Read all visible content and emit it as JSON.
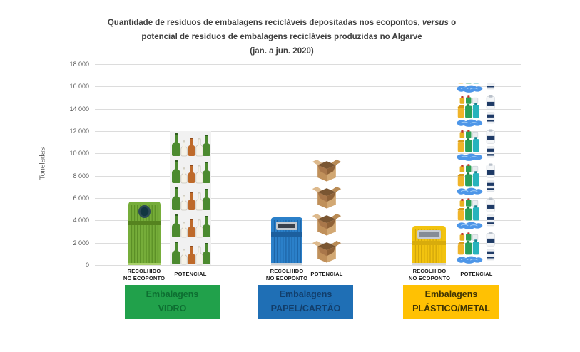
{
  "title": {
    "line1_pre": "Quantidade de resíduos de embalagens recicláveis depositadas nos ecopontos, ",
    "line1_italic": "versus",
    "line1_post": " o",
    "line2": "potencial de resíduos de embalagens recicláveis produzidas no Algarve",
    "line3": "(jan. a jun. 2020)"
  },
  "y_axis": {
    "label": "Toneladas",
    "ticks": [
      "18 000",
      "16 000",
      "14 000",
      "12 000",
      "10 000",
      "8 000",
      "6 000",
      "4 000",
      "2 000",
      "0"
    ],
    "max": 18000,
    "min": 0
  },
  "chart_data": {
    "type": "bar",
    "title": "Quantidade de resíduos de embalagens recicláveis depositadas nos ecopontos, versus o potencial de resíduos de embalagens recicláveis produzidas no Algarve (jan. a jun. 2020)",
    "xlabel": "",
    "ylabel": "Toneladas",
    "ylim": [
      0,
      18000
    ],
    "grid": true,
    "legend_position": "none",
    "unit": "toneladas",
    "categories": [
      "Embalagens VIDRO",
      "Embalagens PAPEL/CARTÃO",
      "Embalagens PLÁSTICO/METAL"
    ],
    "series": [
      {
        "name": "RECOLHIDO NO ECOPONTO",
        "values": [
          5700,
          4300,
          3500
        ]
      },
      {
        "name": "POTENCIAL",
        "values": [
          12000,
          9800,
          16300
        ]
      }
    ]
  },
  "groups": [
    {
      "id": "vidro",
      "recolhido_label_line1": "RECOLHIDO",
      "recolhido_label_line2": "NO ECOPONTO",
      "potencial_label": "POTENCIAL",
      "category_line1": "Embalagens",
      "category_line2": "VIDRO",
      "category_bg": "#21A14B",
      "category_text": "#0D6E31",
      "bin_icon": "glass-recycling-bin-icon",
      "potencial_icon": "glass-bottles-row-icon",
      "potencial_bg": "#F1F1F1",
      "bin_colors": {
        "body": "#76AD3A",
        "stripe": "#5B8F26",
        "band": "#55831F",
        "base": "#A8D06A",
        "hole_outer": "#2C4A56",
        "hole_inner": "#123641",
        "opening": "circle"
      }
    },
    {
      "id": "papel",
      "recolhido_label_line1": "RECOLHIDO",
      "recolhido_label_line2": "NO ECOPONTO",
      "potencial_label": "POTENCIAL",
      "category_line1": "Embalagens",
      "category_line2": "PAPEL/CARTÃO",
      "category_bg": "#1F6FB5",
      "category_text": "#123E6B",
      "bin_icon": "paper-recycling-bin-icon",
      "potencial_icon": "cardboard-box-icon",
      "potencial_bg": "transparent",
      "bin_colors": {
        "body": "#2B80C9",
        "stripe": "#1E66A8",
        "band": "#1C5F9E",
        "base": "#CDD3D9",
        "slot_frame": "#C3C9D0",
        "slot_inner": "#3A414C",
        "opening": "slot"
      }
    },
    {
      "id": "plastico",
      "recolhido_label_line1": "RECOLHIDO",
      "recolhido_label_line2": "NO ECOPONTO",
      "potencial_label": "POTENCIAL",
      "category_line1": "Embalagens",
      "category_line2": "PLÁSTICO/METAL",
      "category_bg": "#FFC103",
      "category_text": "#3F3404",
      "bin_icon": "plastic-metal-recycling-bin-icon",
      "potencial_icon": "plastic-containers-icon",
      "potencial_bg": "transparent",
      "bin_colors": {
        "body": "#F2C30F",
        "stripe": "#D2A60B",
        "band": "#D8AC0C",
        "base": "#D9D9D9",
        "slot_frame": "#C8CCD2",
        "slot_inner": "#858C96",
        "opening": "slot"
      }
    }
  ]
}
